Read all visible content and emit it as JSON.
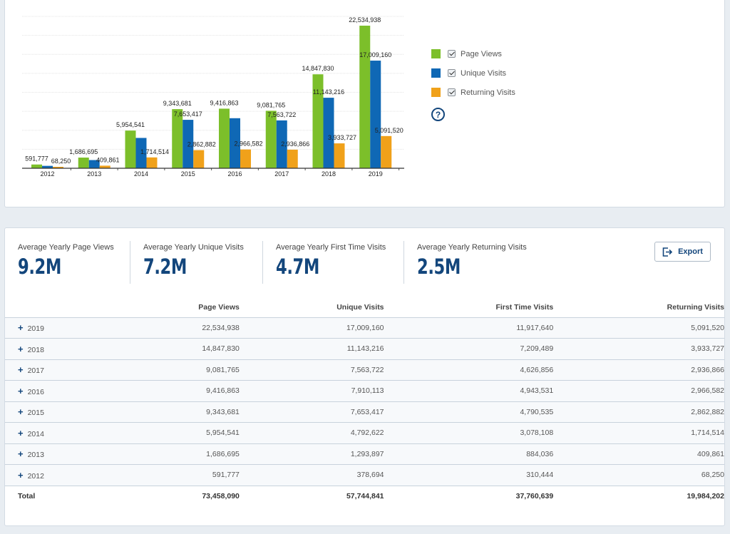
{
  "chart_data": {
    "type": "bar",
    "categories": [
      "2012",
      "2013",
      "2014",
      "2015",
      "2016",
      "2017",
      "2018",
      "2019"
    ],
    "series": [
      {
        "name": "Page Views",
        "color": "#7cbf2a",
        "values": [
          591777,
          1686695,
          5954541,
          9343681,
          9416863,
          9081765,
          14847830,
          22534938
        ]
      },
      {
        "name": "Unique Visits",
        "color": "#0f68b5",
        "values": [
          378694,
          1293897,
          4792622,
          7653417,
          7910113,
          7563722,
          11143216,
          17009160
        ]
      },
      {
        "name": "Returning Visits",
        "color": "#f0a11a",
        "values": [
          68250,
          409861,
          1714514,
          2862882,
          2966582,
          2936866,
          3933727,
          5091520
        ]
      }
    ],
    "data_labels": [
      [
        "591,777",
        "",
        "68,250"
      ],
      [
        "1,686,695",
        "",
        "409,861"
      ],
      [
        "5,954,541",
        "",
        "1,714,514"
      ],
      [
        "9,343,681",
        "7,653,417",
        "2,862,882"
      ],
      [
        "9,416,863",
        "",
        "2,966,582"
      ],
      [
        "9,081,765",
        "7,563,722",
        "2,936,866"
      ],
      [
        "14,847,830",
        "11,143,216",
        "3,933,727"
      ],
      [
        "22,534,938",
        "17,009,160",
        "5,091,520"
      ]
    ],
    "ylim": [
      0,
      24000000
    ],
    "grid": true,
    "legend": "right"
  },
  "legend": {
    "items": [
      {
        "label": "Page Views",
        "color": "#7cbf2a"
      },
      {
        "label": "Unique Visits",
        "color": "#0f68b5"
      },
      {
        "label": "Returning Visits",
        "color": "#f0a11a"
      }
    ],
    "help": "?"
  },
  "kpis": [
    {
      "label": "Average Yearly Page Views",
      "value": "9.2M"
    },
    {
      "label": "Average Yearly Unique Visits",
      "value": "7.2M"
    },
    {
      "label": "Average Yearly First Time Visits",
      "value": "4.7M"
    },
    {
      "label": "Average Yearly Returning Visits",
      "value": "2.5M"
    }
  ],
  "export_label": "Export",
  "table": {
    "headers": [
      "",
      "Page Views",
      "Unique Visits",
      "First Time Visits",
      "Returning Visits"
    ],
    "rows": [
      [
        "2019",
        "22,534,938",
        "17,009,160",
        "11,917,640",
        "5,091,520"
      ],
      [
        "2018",
        "14,847,830",
        "11,143,216",
        "7,209,489",
        "3,933,727"
      ],
      [
        "2017",
        "9,081,765",
        "7,563,722",
        "4,626,856",
        "2,936,866"
      ],
      [
        "2016",
        "9,416,863",
        "7,910,113",
        "4,943,531",
        "2,966,582"
      ],
      [
        "2015",
        "9,343,681",
        "7,653,417",
        "4,790,535",
        "2,862,882"
      ],
      [
        "2014",
        "5,954,541",
        "4,792,622",
        "3,078,108",
        "1,714,514"
      ],
      [
        "2013",
        "1,686,695",
        "1,293,897",
        "884,036",
        "409,861"
      ],
      [
        "2012",
        "591,777",
        "378,694",
        "310,444",
        "68,250"
      ]
    ],
    "total": [
      "Total",
      "73,458,090",
      "57,744,841",
      "37,760,639",
      "19,984,202"
    ],
    "expand_icon": "+"
  },
  "colors": {
    "accent": "#13467c",
    "page_views": "#7cbf2a",
    "unique_visits": "#0f68b5",
    "returning_visits": "#f0a11a"
  }
}
